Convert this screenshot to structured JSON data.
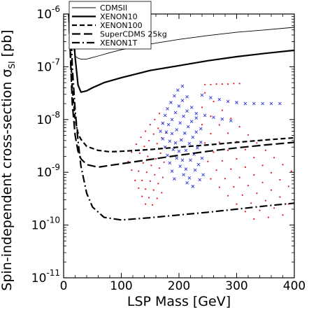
{
  "chart_data": {
    "type": "line",
    "xlabel": "LSP Mass  [GeV]",
    "ylabel_main": "Spin-independent cross-section  σ",
    "ylabel_sub": "SI",
    "ylabel_unit": "[pb]",
    "xlim": [
      0,
      400
    ],
    "ylim": [
      1e-11,
      1e-06
    ],
    "yscale": "log",
    "x_ticks": [
      {
        "value": 0,
        "label": "0"
      },
      {
        "value": 100,
        "label": "100"
      },
      {
        "value": 200,
        "label": "200"
      },
      {
        "value": 300,
        "label": "300"
      },
      {
        "value": 400,
        "label": "400"
      }
    ],
    "y_ticks": [
      {
        "value": 1e-06,
        "base": "10",
        "exp": "-6"
      },
      {
        "value": 1e-07,
        "base": "10",
        "exp": "-7"
      },
      {
        "value": 1e-08,
        "base": "10",
        "exp": "-8"
      },
      {
        "value": 1e-09,
        "base": "10",
        "exp": "-9"
      },
      {
        "value": 1e-10,
        "base": "10",
        "exp": "-10"
      },
      {
        "value": 1e-11,
        "base": "10",
        "exp": "-11"
      }
    ],
    "legend_position": "top-left",
    "series": [
      {
        "name": "CDMSII",
        "style": "thin-solid",
        "x": [
          10,
          15,
          20,
          25,
          30,
          40,
          60,
          80,
          100,
          150,
          200,
          250,
          300,
          350,
          400
        ],
        "y": [
          1.5e-06,
          3e-07,
          1.6e-07,
          1.45e-07,
          1.4e-07,
          1.4e-07,
          1.6e-07,
          1.85e-07,
          2.1e-07,
          2.7e-07,
          3.3e-07,
          3.9e-07,
          4.5e-07,
          5e-07,
          5.6e-07
        ]
      },
      {
        "name": "XENON10",
        "style": "thick-solid",
        "x": [
          15,
          20,
          25,
          30,
          40,
          50,
          70,
          100,
          150,
          200,
          250,
          300,
          350,
          400
        ],
        "y": [
          1e-06,
          1.5e-07,
          4.5e-08,
          3.3e-08,
          3.5e-08,
          4e-08,
          5e-08,
          6.2e-08,
          8.5e-08,
          1.05e-07,
          1.3e-07,
          1.55e-07,
          1.8e-07,
          2.05e-07
        ]
      },
      {
        "name": "XENON100",
        "style": "dashed",
        "x": [
          9,
          11,
          15,
          20,
          25,
          30,
          40,
          60,
          80,
          100,
          150,
          200,
          250,
          300,
          350,
          400
        ],
        "y": [
          1e-06,
          3e-07,
          4e-08,
          1e-08,
          5.5e-09,
          4.2e-09,
          3.1e-09,
          2.6e-09,
          2.45e-09,
          2.5e-09,
          2.7e-09,
          3e-09,
          3.3e-09,
          3.7e-09,
          4.1e-09,
          4.5e-09
        ]
      },
      {
        "name": "SuperCDMS 25kg",
        "style": "long-dashed",
        "x": [
          9,
          11,
          15,
          20,
          25,
          30,
          40,
          60,
          80,
          100,
          150,
          200,
          250,
          300,
          350,
          400
        ],
        "y": [
          1e-06,
          2.5e-07,
          2e-08,
          5e-09,
          2.5e-09,
          1.8e-09,
          1.4e-09,
          1.25e-09,
          1.35e-09,
          1.45e-09,
          1.75e-09,
          2.1e-09,
          2.5e-09,
          2.9e-09,
          3.3e-09,
          3.7e-09
        ]
      },
      {
        "name": "XENON1T",
        "style": "dash-dot",
        "x": [
          12,
          15,
          20,
          25,
          30,
          40,
          50,
          70,
          100,
          150,
          200,
          250,
          300,
          350,
          400
        ],
        "y": [
          1e-06,
          1e-07,
          1.5e-08,
          4e-09,
          1.3e-09,
          4e-10,
          2.2e-10,
          1.4e-10,
          1.25e-10,
          1.38e-10,
          1.55e-10,
          1.75e-10,
          2e-10,
          2.3e-10,
          2.6e-10
        ]
      }
    ],
    "scan_points": {
      "red_dots": [
        {
          "x": [
            112,
            118,
            124,
            130,
            136,
            142
          ],
          "y": [
            1.6e-09,
            1.1e-09,
            7e-10,
            5e-10,
            3.5e-10,
            2.5e-10
          ]
        },
        {
          "x": [
            118,
            124,
            130,
            136,
            142,
            148,
            154
          ],
          "y": [
            2.4e-09,
            1.6e-09,
            1.05e-09,
            7e-10,
            4.8e-10,
            3.3e-10,
            2.4e-10
          ]
        },
        {
          "x": [
            126,
            132,
            138,
            144,
            150,
            156,
            162
          ],
          "y": [
            3.4e-09,
            2.3e-09,
            1.5e-09,
            1e-09,
            6.8e-10,
            4.6e-10,
            3.2e-10
          ]
        },
        {
          "x": [
            134,
            140,
            146,
            152,
            158,
            164,
            170
          ],
          "y": [
            4.6e-09,
            3.1e-09,
            2e-09,
            1.35e-09,
            9e-10,
            6.1e-10,
            4.1e-10
          ]
        },
        {
          "x": [
            142,
            148,
            154,
            160,
            166,
            172
          ],
          "y": [
            6e-09,
            4e-09,
            2.7e-09,
            1.8e-09,
            1.2e-09,
            8e-10
          ]
        },
        {
          "x": [
            150,
            156,
            162,
            168,
            174
          ],
          "y": [
            8e-09,
            5.3e-09,
            3.5e-09,
            2.3e-09,
            1.55e-09
          ]
        },
        {
          "x": [
            158,
            164,
            170,
            176
          ],
          "y": [
            1e-08,
            6.8e-09,
            4.5e-09,
            3e-09
          ]
        },
        {
          "x": [
            166,
            172,
            178
          ],
          "y": [
            1.3e-08,
            8.5e-09,
            5.6e-09
          ]
        },
        {
          "x": [
            245,
            260,
            275,
            290,
            305,
            320,
            335,
            350,
            365,
            380,
            395
          ],
          "y": [
            3.2e-08,
            2.2e-08,
            1.5e-08,
            1.05e-08,
            7.3e-09,
            5.1e-09,
            3.6e-09,
            2.6e-09,
            1.9e-09,
            1.4e-09,
            1.05e-09
          ]
        },
        {
          "x": [
            240,
            255,
            270,
            285,
            300,
            315,
            330,
            345,
            360,
            375,
            390
          ],
          "y": [
            1.7e-08,
            1.15e-08,
            7.9e-09,
            5.5e-09,
            3.8e-09,
            2.7e-09,
            1.9e-09,
            1.35e-09,
            9.8e-10,
            7.2e-10,
            5.4e-10
          ]
        },
        {
          "x": [
            240,
            255,
            270,
            285,
            300,
            315,
            330,
            345,
            360,
            375,
            390
          ],
          "y": [
            8e-09,
            5.4e-09,
            3.7e-09,
            2.6e-09,
            1.8e-09,
            1.25e-09,
            8.9e-10,
            6.4e-10,
            4.6e-10,
            3.4e-10,
            2.5e-10
          ]
        },
        {
          "x": [
            245,
            260,
            275,
            290,
            305,
            320,
            335,
            350,
            365,
            380
          ],
          "y": [
            3.6e-09,
            2.4e-09,
            1.65e-09,
            1.15e-09,
            8e-10,
            5.6e-10,
            4e-10,
            2.9e-10,
            2.1e-10,
            1.55e-10
          ]
        },
        {
          "x": [
            250,
            265,
            280,
            295,
            310,
            325,
            340,
            355
          ],
          "y": [
            1.6e-09,
            1.1e-09,
            7.6e-10,
            5.3e-10,
            3.7e-10,
            2.6e-10,
            1.9e-10,
            1.4e-10
          ]
        },
        {
          "x": [
            255,
            270,
            285,
            300,
            315,
            330
          ],
          "y": [
            7.5e-10,
            5.2e-10,
            3.6e-10,
            2.5e-10,
            1.8e-10,
            1.3e-10
          ]
        },
        {
          "x": [
            245,
            255,
            265,
            275,
            285,
            295,
            305
          ],
          "y": [
            4.6e-08,
            4.6e-08,
            4.7e-08,
            4.7e-08,
            4.7e-08,
            4.8e-08,
            4.8e-08
          ]
        }
      ],
      "blue_crosses": [
        {
          "x": [
            168,
            172,
            176,
            180,
            184,
            188,
            192
          ],
          "y": [
            6e-09,
            4.3e-09,
            3e-09,
            2.1e-09,
            1.5e-09,
            1.05e-09,
            7.5e-10
          ]
        },
        {
          "x": [
            172,
            178,
            184,
            190,
            196,
            202,
            208,
            214
          ],
          "y": [
            8.5e-09,
            5.8e-09,
            3.9e-09,
            2.7e-09,
            1.85e-09,
            1.3e-09,
            9e-10,
            6.3e-10
          ]
        },
        {
          "x": [
            176,
            182,
            188,
            194,
            200,
            206,
            212,
            218,
            224
          ],
          "y": [
            1.2e-08,
            8e-09,
            5.4e-09,
            3.6e-09,
            2.5e-09,
            1.7e-09,
            1.15e-09,
            7.8e-10,
            5.4e-10
          ]
        },
        {
          "x": [
            180,
            188,
            196,
            204,
            212,
            220,
            228,
            236
          ],
          "y": [
            1.6e-08,
            1e-08,
            6.4e-09,
            4.1e-09,
            2.6e-09,
            1.7e-09,
            1.1e-09,
            7.2e-10
          ]
        },
        {
          "x": [
            186,
            194,
            202,
            210,
            218,
            226,
            234,
            242
          ],
          "y": [
            2.1e-08,
            1.35e-08,
            8.6e-09,
            5.5e-09,
            3.5e-09,
            2.2e-09,
            1.4e-09,
            9e-10
          ]
        },
        {
          "x": [
            192,
            200,
            208,
            216,
            224,
            232,
            240
          ],
          "y": [
            2.8e-08,
            1.8e-08,
            1.15e-08,
            7.3e-09,
            4.6e-09,
            2.9e-09,
            1.85e-09
          ]
        },
        {
          "x": [
            198,
            206,
            214,
            222,
            230,
            238
          ],
          "y": [
            3.6e-08,
            2.3e-08,
            1.45e-08,
            9.2e-09,
            5.8e-09,
            3.7e-09
          ]
        },
        {
          "x": [
            206,
            214,
            222,
            230,
            238
          ],
          "y": [
            4.3e-08,
            2.7e-08,
            1.7e-08,
            1.07e-08,
            6.7e-09
          ]
        },
        {
          "x": [
            240,
            255,
            270,
            285,
            300,
            315,
            330,
            345,
            360,
            375
          ],
          "y": [
            2.9e-08,
            2.6e-08,
            2.4e-08,
            2.2e-08,
            2.1e-08,
            2e-08,
            2e-08,
            2e-08,
            2e-08,
            2e-08
          ]
        },
        {
          "x": [
            230,
            245,
            260,
            275,
            290
          ],
          "y": [
            1.3e-08,
            1.2e-08,
            1.1e-08,
            1.02e-08,
            9.5e-09
          ]
        }
      ]
    }
  }
}
